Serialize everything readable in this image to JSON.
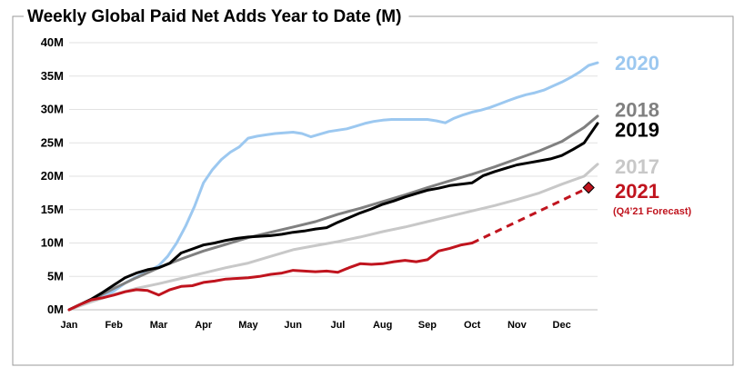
{
  "chart_data": {
    "type": "line",
    "title": "Weekly Global Paid Net Adds Year to Date (M)",
    "xlabel": "",
    "ylabel": "",
    "x_categories": [
      "Jan",
      "Feb",
      "Mar",
      "Apr",
      "May",
      "Jun",
      "Jul",
      "Aug",
      "Sep",
      "Oct",
      "Nov",
      "Dec"
    ],
    "x_range": [
      0,
      11.8
    ],
    "ylim": [
      0,
      40
    ],
    "y_ticks": [
      "0M",
      "5M",
      "10M",
      "15M",
      "20M",
      "25M",
      "30M",
      "35M",
      "40M"
    ],
    "grid": "horizontal",
    "legend": "right-end labels",
    "series": [
      {
        "name": "2020",
        "color": "#9cc8f0",
        "x": [
          0,
          0.2,
          0.4,
          0.6,
          0.8,
          1.0,
          1.25,
          1.5,
          1.75,
          2.0,
          2.2,
          2.4,
          2.6,
          2.8,
          3.0,
          3.2,
          3.4,
          3.6,
          3.8,
          4.0,
          4.2,
          4.4,
          4.6,
          4.8,
          5.0,
          5.2,
          5.4,
          5.6,
          5.8,
          6.0,
          6.2,
          6.4,
          6.6,
          6.8,
          7.0,
          7.2,
          7.4,
          7.6,
          7.8,
          8.0,
          8.2,
          8.4,
          8.6,
          8.8,
          9.0,
          9.2,
          9.4,
          9.6,
          9.8,
          10.0,
          10.2,
          10.4,
          10.6,
          10.8,
          11.0,
          11.2,
          11.4,
          11.6,
          11.8
        ],
        "values": [
          0,
          0.6,
          1.2,
          1.6,
          2.1,
          2.8,
          4.0,
          4.9,
          5.7,
          6.6,
          8.0,
          10.0,
          12.5,
          15.5,
          19.0,
          21.0,
          22.5,
          23.6,
          24.4,
          25.7,
          26.0,
          26.2,
          26.4,
          26.5,
          26.6,
          26.4,
          25.9,
          26.3,
          26.7,
          26.9,
          27.1,
          27.5,
          27.9,
          28.2,
          28.4,
          28.5,
          28.5,
          28.5,
          28.5,
          28.5,
          28.3,
          28.0,
          28.7,
          29.2,
          29.6,
          29.9,
          30.3,
          30.8,
          31.3,
          31.8,
          32.2,
          32.5,
          32.9,
          33.5,
          34.1,
          34.8,
          35.6,
          36.6,
          37.0
        ]
      },
      {
        "name": "2018",
        "color": "#808080",
        "x": [
          0,
          0.5,
          1.0,
          1.5,
          2.0,
          2.5,
          3.0,
          3.5,
          4.0,
          4.5,
          5.0,
          5.5,
          6.0,
          6.5,
          7.0,
          7.5,
          8.0,
          8.5,
          9.0,
          9.5,
          10.0,
          10.5,
          11.0,
          11.5,
          11.8
        ],
        "values": [
          0,
          1.5,
          3.2,
          4.8,
          6.3,
          7.6,
          8.8,
          9.8,
          10.8,
          11.6,
          12.4,
          13.2,
          14.3,
          15.2,
          16.2,
          17.2,
          18.3,
          19.3,
          20.3,
          21.4,
          22.6,
          23.8,
          25.2,
          27.3,
          29.0
        ]
      },
      {
        "name": "2019",
        "color": "#000000",
        "x": [
          0,
          0.25,
          0.5,
          0.75,
          1.0,
          1.25,
          1.5,
          1.75,
          2.0,
          2.25,
          2.5,
          2.75,
          3.0,
          3.25,
          3.5,
          3.75,
          4.0,
          4.25,
          4.5,
          4.75,
          5.0,
          5.25,
          5.5,
          5.75,
          6.0,
          6.25,
          6.5,
          6.75,
          7.0,
          7.25,
          7.5,
          7.75,
          8.0,
          8.25,
          8.5,
          8.75,
          9.0,
          9.25,
          9.5,
          9.75,
          10.0,
          10.25,
          10.5,
          10.75,
          11.0,
          11.25,
          11.5,
          11.8
        ],
        "values": [
          0,
          0.8,
          1.6,
          2.6,
          3.7,
          4.8,
          5.5,
          6.0,
          6.3,
          7.0,
          8.5,
          9.1,
          9.7,
          10.0,
          10.4,
          10.7,
          10.9,
          11.0,
          11.1,
          11.3,
          11.6,
          11.8,
          12.1,
          12.3,
          13.1,
          13.8,
          14.5,
          15.1,
          15.8,
          16.3,
          16.9,
          17.4,
          17.9,
          18.2,
          18.6,
          18.8,
          19.0,
          20.1,
          20.7,
          21.2,
          21.7,
          22.0,
          22.3,
          22.6,
          23.1,
          24.0,
          25.0,
          27.9
        ]
      },
      {
        "name": "2017",
        "color": "#c8c8c8",
        "x": [
          0,
          0.5,
          1.0,
          1.5,
          2.0,
          2.5,
          3.0,
          3.5,
          4.0,
          4.5,
          5.0,
          5.5,
          6.0,
          6.5,
          7.0,
          7.5,
          8.0,
          8.5,
          9.0,
          9.5,
          10.0,
          10.5,
          11.0,
          11.5,
          11.8
        ],
        "values": [
          0,
          1.2,
          2.3,
          3.2,
          3.9,
          4.7,
          5.5,
          6.3,
          7.0,
          8.0,
          9.0,
          9.6,
          10.2,
          10.9,
          11.7,
          12.4,
          13.2,
          14.0,
          14.8,
          15.6,
          16.5,
          17.5,
          18.8,
          20.0,
          21.8
        ]
      },
      {
        "name": "2021",
        "color": "#c0141e",
        "x": [
          0,
          0.25,
          0.5,
          0.75,
          1.0,
          1.25,
          1.5,
          1.75,
          2.0,
          2.25,
          2.5,
          2.75,
          3.0,
          3.25,
          3.5,
          3.75,
          4.0,
          4.25,
          4.5,
          4.75,
          5.0,
          5.25,
          5.5,
          5.75,
          6.0,
          6.25,
          6.5,
          6.75,
          7.0,
          7.25,
          7.5,
          7.75,
          8.0,
          8.25,
          8.5,
          8.75,
          9.0
        ],
        "values": [
          0,
          0.8,
          1.5,
          1.8,
          2.2,
          2.7,
          3.0,
          2.9,
          2.2,
          3.0,
          3.5,
          3.6,
          4.1,
          4.3,
          4.6,
          4.7,
          4.8,
          5.0,
          5.3,
          5.5,
          5.9,
          5.8,
          5.7,
          5.8,
          5.6,
          6.3,
          6.9,
          6.8,
          6.9,
          7.2,
          7.4,
          7.2,
          7.5,
          8.8,
          9.2,
          9.7,
          10.0
        ]
      },
      {
        "name": "2021 forecast",
        "color": "#c0141e",
        "dashed": true,
        "x": [
          9.0,
          11.6
        ],
        "values": [
          10.0,
          18.3
        ],
        "end_marker": "diamond"
      }
    ],
    "end_labels": [
      {
        "text": "2020",
        "color": "#9cc8f0",
        "y": 37.0
      },
      {
        "text": "2018",
        "color": "#808080",
        "y": 30.0
      },
      {
        "text": "2019",
        "color": "#000000",
        "y": 27.0
      },
      {
        "text": "2017",
        "color": "#c8c8c8",
        "y": 21.5
      },
      {
        "text": "2021",
        "color": "#c0141e",
        "y": 17.8
      }
    ],
    "annotation": {
      "text": "(Q4’21 Forecast)",
      "color": "#c0141e"
    }
  }
}
